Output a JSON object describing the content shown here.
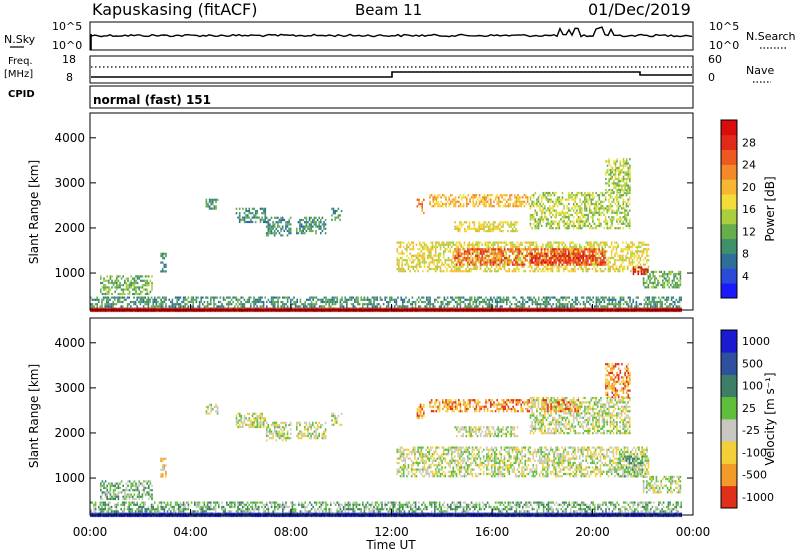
{
  "header": {
    "station": "Kapuskasing (fitACF)",
    "beam": "Beam 11",
    "date": "01/Dec/2019"
  },
  "noise_panel": {
    "left_label": "N.Sky",
    "right_label": "N.Search",
    "tick_top": "10^5",
    "tick_bottom": "10^0",
    "line_color": "#000000"
  },
  "freq_panel": {
    "left_label_1": "Freq.",
    "left_label_2": "[MHz]",
    "left_label_3": "CPID",
    "right_label": "Nave",
    "left_ticks": [
      "18",
      "8"
    ],
    "right_ticks": [
      "60",
      "0"
    ]
  },
  "mode_text": "normal (fast) 151",
  "chart_data": [
    {
      "type": "heatmap",
      "name": "power",
      "ylabel": "Slant Range [km]",
      "xlabel": "Time UT",
      "xticks": [
        "00:00",
        "04:00",
        "08:00",
        "12:00",
        "16:00",
        "20:00",
        "00:00"
      ],
      "yticks": [
        "1000",
        "2000",
        "3000",
        "4000"
      ],
      "ylim": [
        180,
        4550
      ],
      "xlim_hours": [
        0,
        24
      ],
      "colorbar": {
        "label": "Power [dB]",
        "ticks": [
          "4",
          "8",
          "12",
          "16",
          "20",
          "24",
          "28"
        ],
        "colors": [
          "#1a1aff",
          "#2a4bd8",
          "#2e6e9a",
          "#3f8f6a",
          "#67ad4a",
          "#a9cf3f",
          "#f2dd3a",
          "#f7b733",
          "#f28a2a",
          "#ec5a22",
          "#e22a1a",
          "#d90d0d"
        ]
      },
      "regions": [
        {
          "t0": 0.4,
          "t1": 2.5,
          "r0": 550,
          "r1": 950,
          "level": 4
        },
        {
          "t0": 0.0,
          "t1": 23.5,
          "r0": 230,
          "r1": 480,
          "level": 3
        },
        {
          "t0": 0.0,
          "t1": 23.5,
          "r0": 180,
          "r1": 230,
          "level": 11
        },
        {
          "t0": 2.8,
          "t1": 3.0,
          "r0": 1050,
          "r1": 1450,
          "level": 3
        },
        {
          "t0": 4.6,
          "t1": 5.1,
          "r0": 2450,
          "r1": 2650,
          "level": 3
        },
        {
          "t0": 5.8,
          "t1": 7.0,
          "r0": 2150,
          "r1": 2450,
          "level": 3
        },
        {
          "t0": 7.0,
          "t1": 8.0,
          "r0": 1850,
          "r1": 2250,
          "level": 3
        },
        {
          "t0": 8.2,
          "t1": 9.4,
          "r0": 1900,
          "r1": 2250,
          "level": 3
        },
        {
          "t0": 9.6,
          "t1": 10.0,
          "r0": 2200,
          "r1": 2450,
          "level": 3
        },
        {
          "t0": 12.2,
          "t1": 22.2,
          "r0": 1050,
          "r1": 1700,
          "level": 6
        },
        {
          "t0": 14.5,
          "t1": 20.5,
          "r0": 1200,
          "r1": 1550,
          "level": 9
        },
        {
          "t0": 17.5,
          "t1": 20.0,
          "r0": 1250,
          "r1": 1450,
          "level": 10
        },
        {
          "t0": 13.5,
          "t1": 17.5,
          "r0": 2500,
          "r1": 2750,
          "level": 7
        },
        {
          "t0": 14.5,
          "t1": 17.0,
          "r0": 1950,
          "r1": 2150,
          "level": 6
        },
        {
          "t0": 17.5,
          "t1": 21.5,
          "r0": 2000,
          "r1": 2800,
          "level": 5
        },
        {
          "t0": 20.5,
          "t1": 21.5,
          "r0": 2800,
          "r1": 3550,
          "level": 5
        },
        {
          "t0": 13.0,
          "t1": 13.3,
          "r0": 2350,
          "r1": 2650,
          "level": 8
        },
        {
          "t0": 22.0,
          "t1": 23.5,
          "r0": 700,
          "r1": 1050,
          "level": 4
        },
        {
          "t0": 21.6,
          "t1": 22.2,
          "r0": 1000,
          "r1": 1150,
          "level": 11
        }
      ]
    },
    {
      "type": "heatmap",
      "name": "velocity",
      "ylabel": "Slant Range [km]",
      "xlabel": "Time UT",
      "xticks": [
        "00:00",
        "04:00",
        "08:00",
        "12:00",
        "16:00",
        "20:00",
        "00:00"
      ],
      "yticks": [
        "1000",
        "2000",
        "3000",
        "4000"
      ],
      "ylim": [
        180,
        4550
      ],
      "xlim_hours": [
        0,
        24
      ],
      "colorbar": {
        "label": "Velocity [m s⁻¹]",
        "ticks": [
          "1000",
          "500",
          "100",
          "25",
          "-25",
          "-100",
          "-500",
          "-1000"
        ],
        "colors": [
          "#1a1ad0",
          "#2f4f9f",
          "#3d7f66",
          "#5fbf3a",
          "#c8c8c0",
          "#f3cf3a",
          "#f29a2a",
          "#e0301a"
        ]
      },
      "regions": [
        {
          "t0": 0.4,
          "t1": 2.5,
          "r0": 550,
          "r1": 950,
          "level": 3
        },
        {
          "t0": 0.0,
          "t1": 23.5,
          "r0": 230,
          "r1": 480,
          "level": 3
        },
        {
          "t0": 0.0,
          "t1": 23.5,
          "r0": 180,
          "r1": 230,
          "level": 0
        },
        {
          "t0": 2.8,
          "t1": 3.0,
          "r0": 1050,
          "r1": 1450,
          "level": 5
        },
        {
          "t0": 4.6,
          "t1": 5.1,
          "r0": 2450,
          "r1": 2650,
          "level": 4
        },
        {
          "t0": 5.8,
          "t1": 7.0,
          "r0": 2150,
          "r1": 2450,
          "level": 4
        },
        {
          "t0": 7.0,
          "t1": 8.0,
          "r0": 1850,
          "r1": 2250,
          "level": 4
        },
        {
          "t0": 8.2,
          "t1": 9.4,
          "r0": 1900,
          "r1": 2250,
          "level": 4
        },
        {
          "t0": 9.6,
          "t1": 10.0,
          "r0": 2200,
          "r1": 2450,
          "level": 4
        },
        {
          "t0": 12.2,
          "t1": 22.2,
          "r0": 1050,
          "r1": 1700,
          "level": 4
        },
        {
          "t0": 13.5,
          "t1": 17.5,
          "r0": 2500,
          "r1": 2750,
          "level": 6
        },
        {
          "t0": 14.5,
          "t1": 17.0,
          "r0": 1950,
          "r1": 2150,
          "level": 4
        },
        {
          "t0": 17.5,
          "t1": 21.5,
          "r0": 2000,
          "r1": 2800,
          "level": 4
        },
        {
          "t0": 18.0,
          "t1": 19.5,
          "r0": 2500,
          "r1": 2750,
          "level": 6
        },
        {
          "t0": 20.5,
          "t1": 21.5,
          "r0": 2800,
          "r1": 3550,
          "level": 6
        },
        {
          "t0": 13.0,
          "t1": 13.3,
          "r0": 2350,
          "r1": 2650,
          "level": 6
        },
        {
          "t0": 22.0,
          "t1": 23.5,
          "r0": 700,
          "r1": 1050,
          "level": 4
        },
        {
          "t0": 21.0,
          "t1": 22.0,
          "r0": 1050,
          "r1": 1500,
          "level": 3
        }
      ]
    }
  ]
}
